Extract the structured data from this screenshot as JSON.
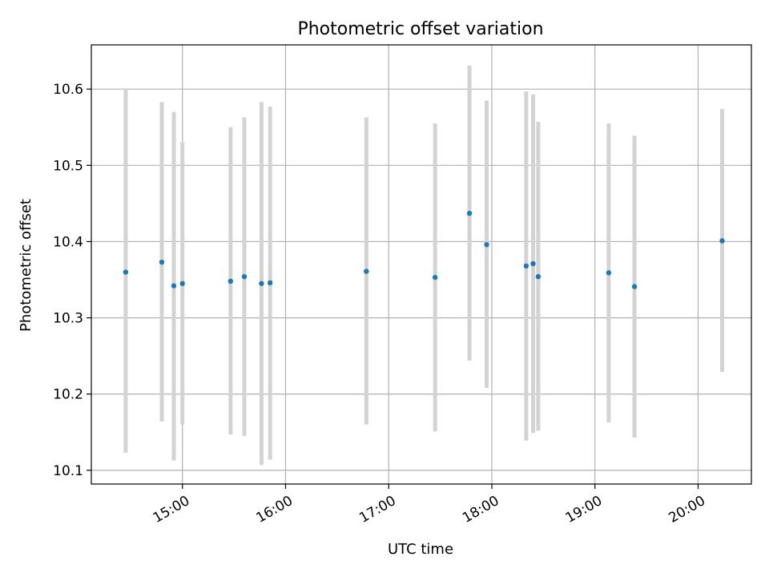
{
  "chart_data": {
    "type": "scatter",
    "title": "Photometric offset variation",
    "xlabel": "UTC time",
    "ylabel": "Photometric offset",
    "x_unit": "UTC time of day",
    "xlim": [
      "14:07",
      "20:31"
    ],
    "ylim": [
      10.082,
      10.658
    ],
    "grid": true,
    "legend": "none",
    "x_ticks": [
      "15:00",
      "16:00",
      "17:00",
      "18:00",
      "19:00",
      "20:00"
    ],
    "y_ticks": [
      "10.1",
      "10.2",
      "10.3",
      "10.4",
      "10.5",
      "10.6"
    ],
    "series": [
      {
        "marker_color": "#1f77b4",
        "errorbar_color": "#d3d3d3",
        "points": [
          {
            "x": "14:27",
            "y": 10.36,
            "y_err_low": 10.123,
            "y_err_high": 10.6
          },
          {
            "x": "14:48",
            "y": 10.373,
            "y_err_low": 10.164,
            "y_err_high": 10.583
          },
          {
            "x": "14:55",
            "y": 10.342,
            "y_err_low": 10.113,
            "y_err_high": 10.57
          },
          {
            "x": "15:00",
            "y": 10.345,
            "y_err_low": 10.16,
            "y_err_high": 10.53
          },
          {
            "x": "15:28",
            "y": 10.348,
            "y_err_low": 10.147,
            "y_err_high": 10.55
          },
          {
            "x": "15:36",
            "y": 10.354,
            "y_err_low": 10.145,
            "y_err_high": 10.563
          },
          {
            "x": "15:46",
            "y": 10.345,
            "y_err_low": 10.107,
            "y_err_high": 10.583
          },
          {
            "x": "15:51",
            "y": 10.346,
            "y_err_low": 10.114,
            "y_err_high": 10.577
          },
          {
            "x": "16:47",
            "y": 10.361,
            "y_err_low": 10.16,
            "y_err_high": 10.563
          },
          {
            "x": "17:27",
            "y": 10.353,
            "y_err_low": 10.151,
            "y_err_high": 10.555
          },
          {
            "x": "17:47",
            "y": 10.437,
            "y_err_low": 10.244,
            "y_err_high": 10.631
          },
          {
            "x": "17:57",
            "y": 10.396,
            "y_err_low": 10.208,
            "y_err_high": 10.585
          },
          {
            "x": "18:20",
            "y": 10.368,
            "y_err_low": 10.139,
            "y_err_high": 10.597
          },
          {
            "x": "18:24",
            "y": 10.371,
            "y_err_low": 10.149,
            "y_err_high": 10.593
          },
          {
            "x": "18:27",
            "y": 10.354,
            "y_err_low": 10.152,
            "y_err_high": 10.557
          },
          {
            "x": "19:08",
            "y": 10.359,
            "y_err_low": 10.163,
            "y_err_high": 10.555
          },
          {
            "x": "19:23",
            "y": 10.341,
            "y_err_low": 10.143,
            "y_err_high": 10.539
          },
          {
            "x": "20:14",
            "y": 10.401,
            "y_err_low": 10.229,
            "y_err_high": 10.574
          }
        ]
      }
    ]
  }
}
